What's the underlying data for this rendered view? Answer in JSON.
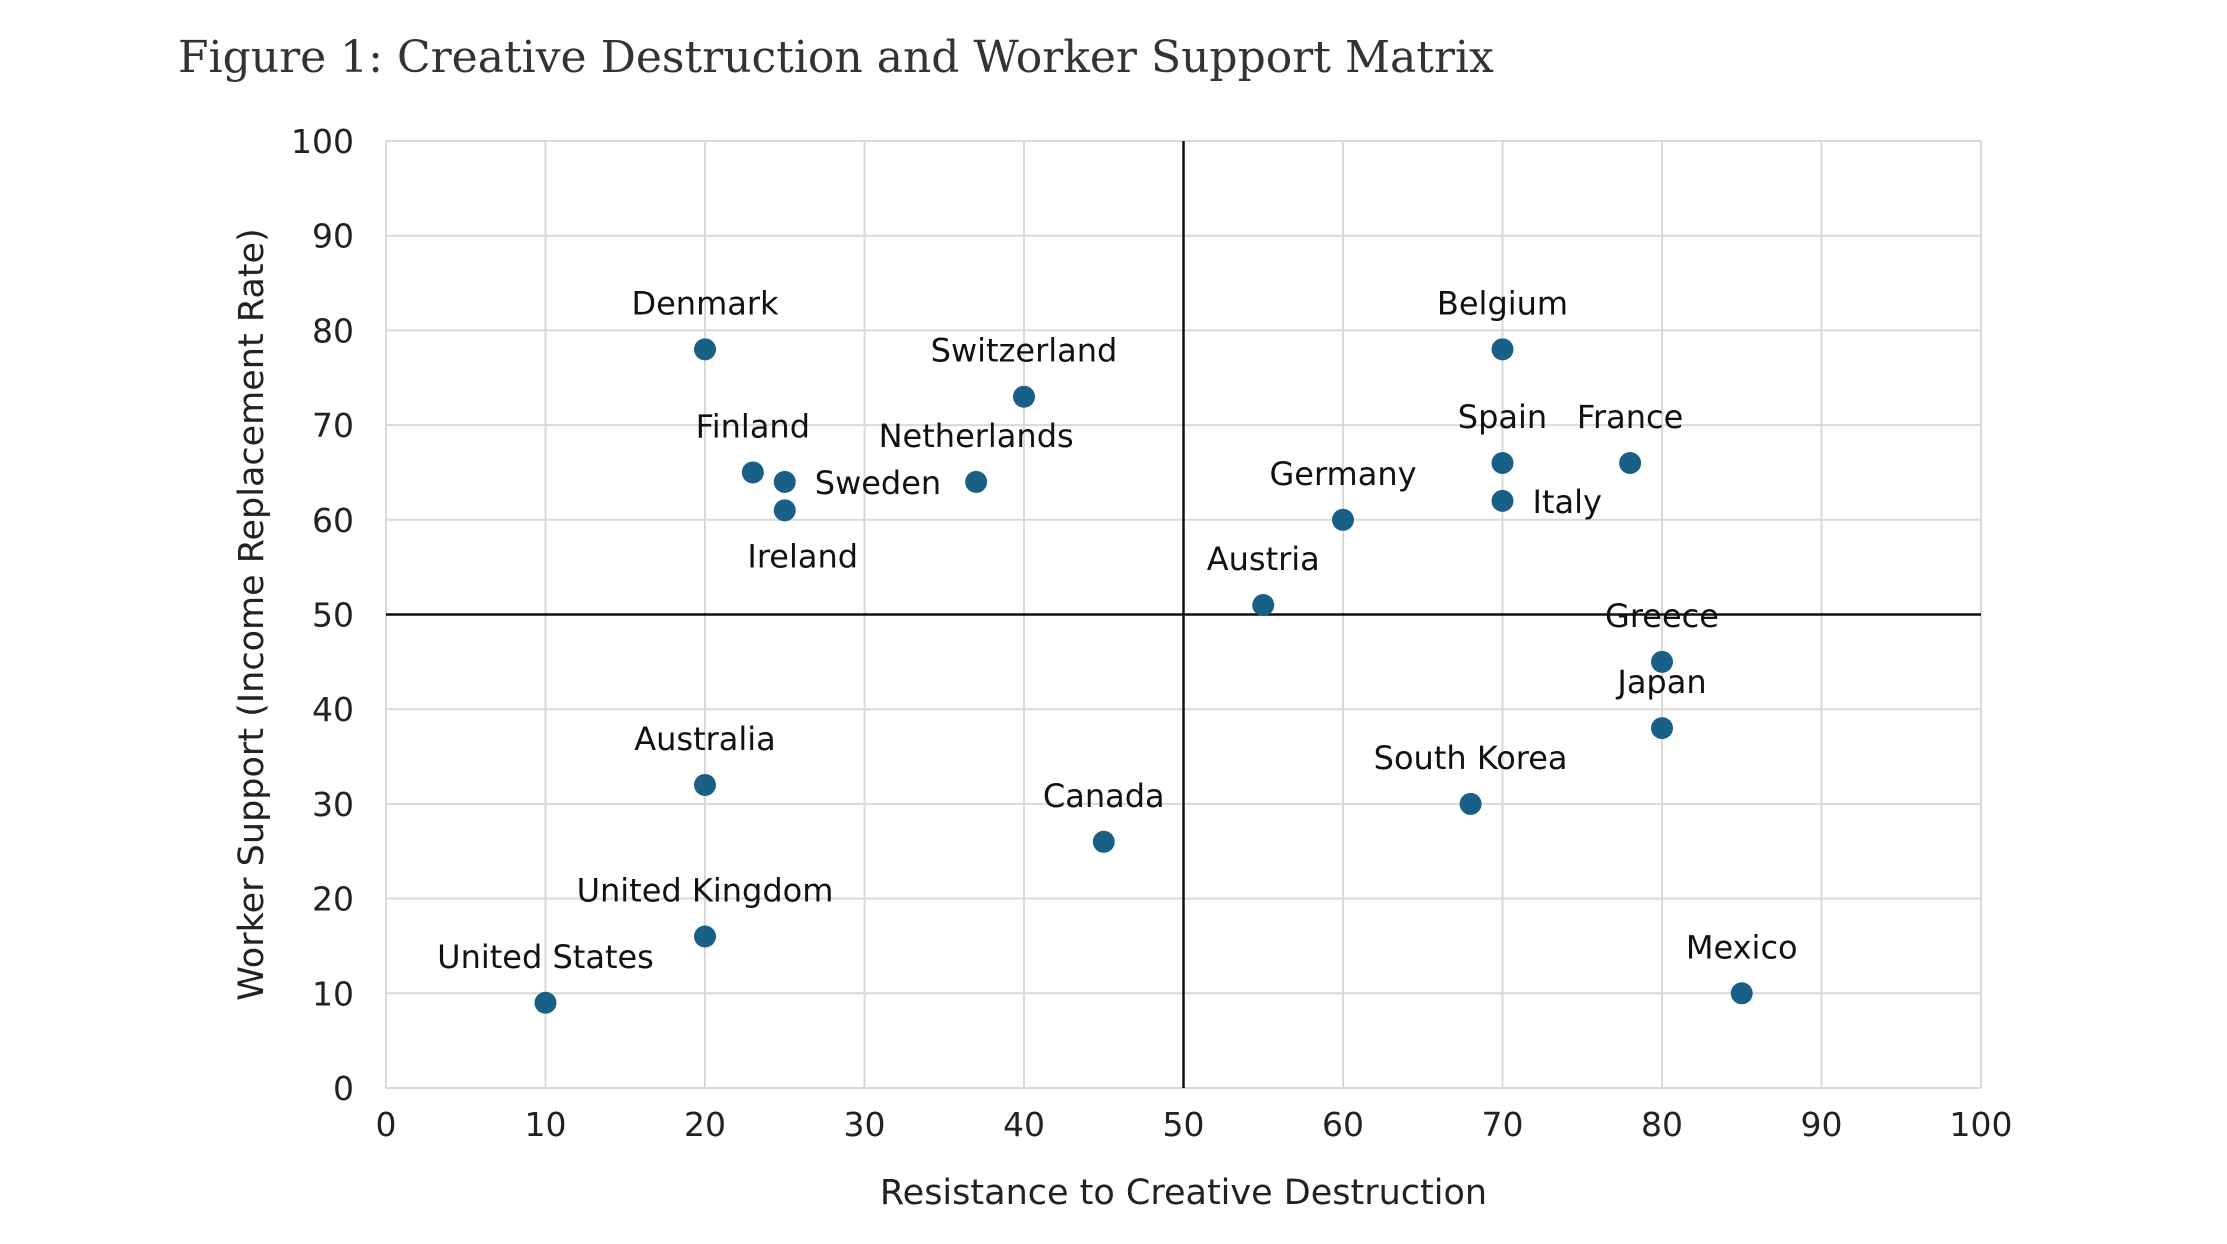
{
  "figure": {
    "title": "Figure 1: Creative Destruction and Worker Support Matrix"
  },
  "chart_data": {
    "type": "scatter",
    "title": "Figure 1: Creative Destruction and Worker Support Matrix",
    "xlabel": "Resistance to Creative Destruction",
    "ylabel": "Worker Support (Income Replacement Rate)",
    "xlim": [
      0,
      100
    ],
    "ylim": [
      0,
      100
    ],
    "xticks": [
      0,
      10,
      20,
      30,
      40,
      50,
      60,
      70,
      80,
      90,
      100
    ],
    "yticks": [
      0,
      10,
      20,
      30,
      40,
      50,
      60,
      70,
      80,
      90,
      100
    ],
    "grid": true,
    "reference_lines": {
      "x": 50,
      "y": 50
    },
    "marker_color": "#1a5f86",
    "grid_color": "#d9d9d9",
    "points": [
      {
        "label": "Denmark",
        "x": 20,
        "y": 78,
        "label_pos": "above"
      },
      {
        "label": "Switzerland",
        "x": 40,
        "y": 73,
        "label_pos": "above"
      },
      {
        "label": "Finland",
        "x": 23,
        "y": 65,
        "label_pos": "above"
      },
      {
        "label": "Netherlands",
        "x": 37,
        "y": 64,
        "label_pos": "above"
      },
      {
        "label": "Sweden",
        "x": 25,
        "y": 64,
        "label_pos": "right"
      },
      {
        "label": "Ireland",
        "x": 25,
        "y": 61,
        "label_pos": "below"
      },
      {
        "label": "Belgium",
        "x": 70,
        "y": 78,
        "label_pos": "above"
      },
      {
        "label": "Spain",
        "x": 70,
        "y": 66,
        "label_pos": "above"
      },
      {
        "label": "France",
        "x": 78,
        "y": 66,
        "label_pos": "above"
      },
      {
        "label": "Italy",
        "x": 70,
        "y": 62,
        "label_pos": "right"
      },
      {
        "label": "Germany",
        "x": 60,
        "y": 60,
        "label_pos": "above"
      },
      {
        "label": "Austria",
        "x": 55,
        "y": 51,
        "label_pos": "above"
      },
      {
        "label": "Greece",
        "x": 80,
        "y": 45,
        "label_pos": "above"
      },
      {
        "label": "Japan",
        "x": 80,
        "y": 38,
        "label_pos": "above"
      },
      {
        "label": "South Korea",
        "x": 68,
        "y": 30,
        "label_pos": "above"
      },
      {
        "label": "Mexico",
        "x": 85,
        "y": 10,
        "label_pos": "above"
      },
      {
        "label": "Australia",
        "x": 20,
        "y": 32,
        "label_pos": "above"
      },
      {
        "label": "Canada",
        "x": 45,
        "y": 26,
        "label_pos": "above"
      },
      {
        "label": "United Kingdom",
        "x": 20,
        "y": 16,
        "label_pos": "above"
      },
      {
        "label": "United States",
        "x": 10,
        "y": 9,
        "label_pos": "above"
      }
    ]
  }
}
